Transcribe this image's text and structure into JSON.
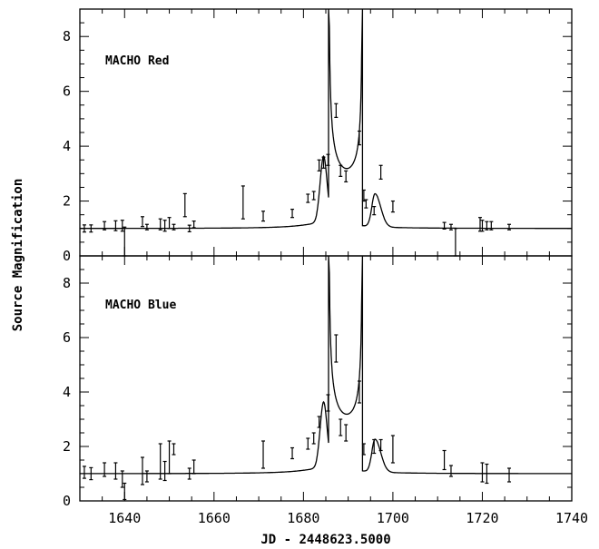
{
  "chart_data": {
    "type": "line",
    "xlabel": "JD - 2448623.5000",
    "ylabel": "Source Magnification",
    "xlim": [
      1630,
      1740
    ],
    "x_ticks": [
      1640,
      1660,
      1680,
      1700,
      1720,
      1740
    ],
    "grid": false,
    "panels": [
      {
        "label": "MACHO Red",
        "ylim": [
          0,
          9
        ],
        "y_ticks": [
          0,
          2,
          4,
          6,
          8
        ],
        "errorbars": [
          {
            "x": 1631.0,
            "y": 1.0,
            "err": 0.13
          },
          {
            "x": 1632.5,
            "y": 1.0,
            "err": 0.13
          },
          {
            "x": 1635.5,
            "y": 1.1,
            "err": 0.15
          },
          {
            "x": 1638.0,
            "y": 1.1,
            "err": 0.18
          },
          {
            "x": 1639.5,
            "y": 1.1,
            "err": 0.2
          },
          {
            "x": 1640.0,
            "y": 0.5,
            "err": 0.55
          },
          {
            "x": 1644.0,
            "y": 1.25,
            "err": 0.18
          },
          {
            "x": 1645.0,
            "y": 1.05,
            "err": 0.1
          },
          {
            "x": 1648.0,
            "y": 1.15,
            "err": 0.2
          },
          {
            "x": 1649.0,
            "y": 1.1,
            "err": 0.2
          },
          {
            "x": 1650.0,
            "y": 1.2,
            "err": 0.2
          },
          {
            "x": 1651.0,
            "y": 1.05,
            "err": 0.1
          },
          {
            "x": 1653.5,
            "y": 1.85,
            "err": 0.42
          },
          {
            "x": 1654.5,
            "y": 1.0,
            "err": 0.12
          },
          {
            "x": 1655.5,
            "y": 1.15,
            "err": 0.12
          },
          {
            "x": 1666.5,
            "y": 1.95,
            "err": 0.6
          },
          {
            "x": 1671.0,
            "y": 1.45,
            "err": 0.18
          },
          {
            "x": 1677.5,
            "y": 1.55,
            "err": 0.15
          },
          {
            "x": 1681.0,
            "y": 2.1,
            "err": 0.15
          },
          {
            "x": 1682.3,
            "y": 2.2,
            "err": 0.15
          },
          {
            "x": 1683.5,
            "y": 3.3,
            "err": 0.2
          },
          {
            "x": 1684.5,
            "y": 3.4,
            "err": 0.2
          },
          {
            "x": 1685.5,
            "y": 3.5,
            "err": 0.2
          },
          {
            "x": 1687.3,
            "y": 5.3,
            "err": 0.25
          },
          {
            "x": 1688.3,
            "y": 3.1,
            "err": 0.2
          },
          {
            "x": 1689.5,
            "y": 2.9,
            "err": 0.2
          },
          {
            "x": 1692.5,
            "y": 4.3,
            "err": 0.25
          },
          {
            "x": 1693.5,
            "y": 2.2,
            "err": 0.2
          },
          {
            "x": 1694.0,
            "y": 1.9,
            "err": 0.15
          },
          {
            "x": 1695.8,
            "y": 1.65,
            "err": 0.15
          },
          {
            "x": 1697.3,
            "y": 3.05,
            "err": 0.25
          },
          {
            "x": 1700.0,
            "y": 1.8,
            "err": 0.2
          },
          {
            "x": 1711.5,
            "y": 1.1,
            "err": 0.12
          },
          {
            "x": 1713.0,
            "y": 1.05,
            "err": 0.1
          },
          {
            "x": 1714.0,
            "y": 0.5,
            "err": 0.5
          },
          {
            "x": 1719.5,
            "y": 1.15,
            "err": 0.25
          },
          {
            "x": 1720.0,
            "y": 1.1,
            "err": 0.2
          },
          {
            "x": 1721.0,
            "y": 1.1,
            "err": 0.15
          },
          {
            "x": 1722.0,
            "y": 1.1,
            "err": 0.15
          },
          {
            "x": 1726.0,
            "y": 1.05,
            "err": 0.1
          }
        ]
      },
      {
        "label": "MACHO Blue",
        "ylim": [
          0,
          9
        ],
        "y_ticks": [
          0,
          2,
          4,
          6,
          8
        ],
        "errorbars": [
          {
            "x": 1631.0,
            "y": 1.05,
            "err": 0.22
          },
          {
            "x": 1632.5,
            "y": 1.0,
            "err": 0.22
          },
          {
            "x": 1635.5,
            "y": 1.15,
            "err": 0.25
          },
          {
            "x": 1638.0,
            "y": 1.1,
            "err": 0.3
          },
          {
            "x": 1639.5,
            "y": 0.8,
            "err": 0.3
          },
          {
            "x": 1640.0,
            "y": 0.35,
            "err": 0.3
          },
          {
            "x": 1644.0,
            "y": 1.1,
            "err": 0.5
          },
          {
            "x": 1645.0,
            "y": 0.9,
            "err": 0.2
          },
          {
            "x": 1648.0,
            "y": 1.45,
            "err": 0.65
          },
          {
            "x": 1649.0,
            "y": 1.1,
            "err": 0.35
          },
          {
            "x": 1650.0,
            "y": 1.6,
            "err": 0.6
          },
          {
            "x": 1651.0,
            "y": 1.9,
            "err": 0.2
          },
          {
            "x": 1654.5,
            "y": 1.0,
            "err": 0.2
          },
          {
            "x": 1655.5,
            "y": 1.25,
            "err": 0.25
          },
          {
            "x": 1671.0,
            "y": 1.7,
            "err": 0.5
          },
          {
            "x": 1677.5,
            "y": 1.75,
            "err": 0.2
          },
          {
            "x": 1681.0,
            "y": 2.1,
            "err": 0.2
          },
          {
            "x": 1682.3,
            "y": 2.3,
            "err": 0.2
          },
          {
            "x": 1683.5,
            "y": 2.9,
            "err": 0.2
          },
          {
            "x": 1685.5,
            "y": 3.6,
            "err": 0.3
          },
          {
            "x": 1687.3,
            "y": 5.6,
            "err": 0.5
          },
          {
            "x": 1688.3,
            "y": 2.7,
            "err": 0.3
          },
          {
            "x": 1689.5,
            "y": 2.5,
            "err": 0.3
          },
          {
            "x": 1692.5,
            "y": 4.0,
            "err": 0.4
          },
          {
            "x": 1693.5,
            "y": 1.9,
            "err": 0.2
          },
          {
            "x": 1695.8,
            "y": 2.0,
            "err": 0.25
          },
          {
            "x": 1697.3,
            "y": 2.05,
            "err": 0.2
          },
          {
            "x": 1700.0,
            "y": 1.9,
            "err": 0.5
          },
          {
            "x": 1711.5,
            "y": 1.5,
            "err": 0.35
          },
          {
            "x": 1713.0,
            "y": 1.1,
            "err": 0.2
          },
          {
            "x": 1720.0,
            "y": 1.05,
            "err": 0.35
          },
          {
            "x": 1721.0,
            "y": 1.0,
            "err": 0.35
          },
          {
            "x": 1726.0,
            "y": 0.95,
            "err": 0.25
          }
        ]
      }
    ]
  }
}
